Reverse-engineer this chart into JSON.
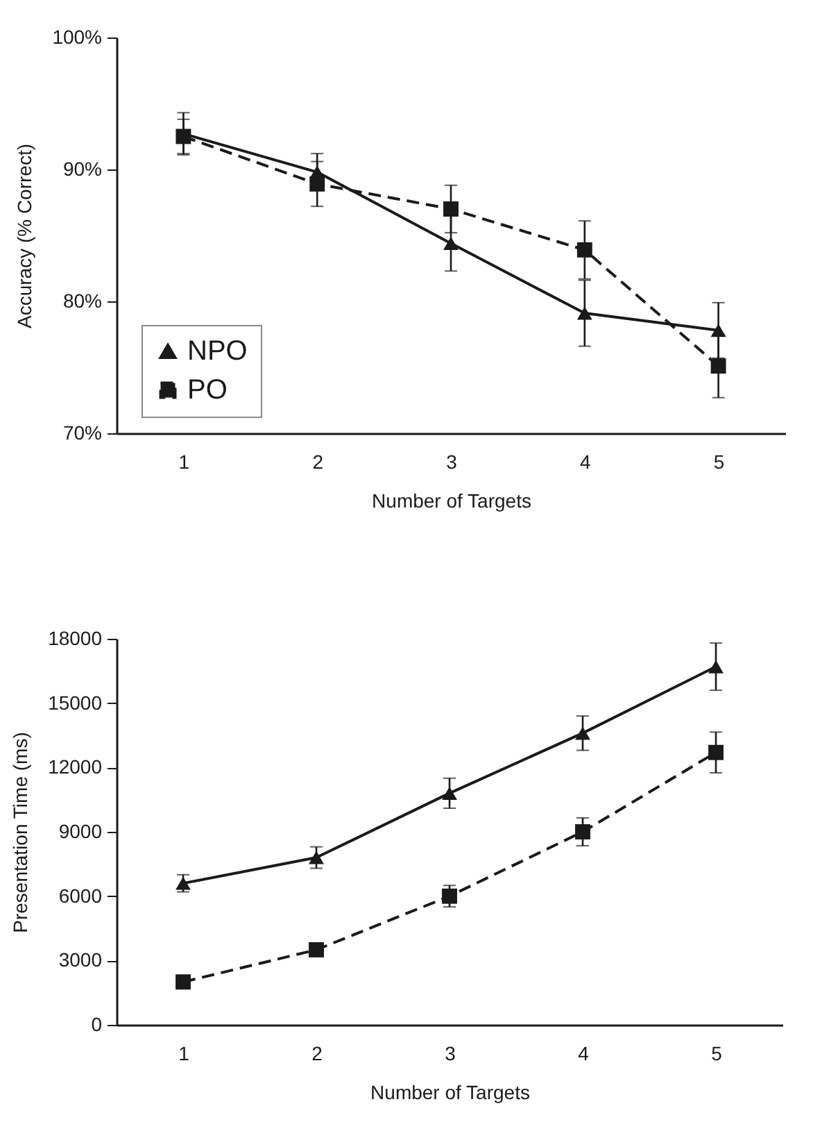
{
  "chart_data": [
    {
      "type": "line",
      "xlabel": "Number of Targets",
      "ylabel": "Accuracy (% Correct)",
      "categories": [
        "1",
        "2",
        "3",
        "4",
        "5"
      ],
      "ylim": [
        70,
        100
      ],
      "yticks": [
        {
          "value": 70,
          "label": "70%"
        },
        {
          "value": 80,
          "label": "80%"
        },
        {
          "value": 90,
          "label": "90%"
        },
        {
          "value": 100,
          "label": "100%"
        }
      ],
      "grid": false,
      "legend": "bottom left",
      "series": [
        {
          "name": "NPO",
          "color": "#1a1a1a",
          "marker": "triangle",
          "line_style": "solid",
          "values": [
            92.7,
            89.8,
            84.4,
            79.1,
            77.8
          ],
          "errors": [
            1.6,
            1.4,
            2.1,
            2.5,
            2.1
          ]
        },
        {
          "name": "PO",
          "color": "#1a1a1a",
          "marker": "square",
          "line_style": "dashed",
          "values": [
            92.5,
            88.9,
            87.0,
            83.9,
            75.1
          ],
          "errors": [
            1.3,
            1.7,
            1.8,
            2.2,
            2.4
          ]
        }
      ]
    },
    {
      "type": "line",
      "xlabel": "Number of Targets",
      "ylabel": "Presentation Time (ms)",
      "categories": [
        "1",
        "2",
        "3",
        "4",
        "5"
      ],
      "ylim": [
        0,
        18000
      ],
      "yticks": [
        0,
        3000,
        6000,
        9000,
        12000,
        15000,
        18000
      ],
      "grid": false,
      "legend": "bottom right",
      "series": [
        {
          "name": "NPO",
          "color": "#1a1a1a",
          "marker": "triangle",
          "line_style": "solid",
          "values": [
            6600,
            7800,
            10800,
            13600,
            16700
          ],
          "errors": [
            400,
            500,
            700,
            800,
            1100
          ]
        },
        {
          "name": "PO",
          "color": "#1a1a1a",
          "marker": "square",
          "line_style": "dashed",
          "values": [
            2000,
            3500,
            6000,
            9000,
            12700
          ],
          "errors": [
            null,
            null,
            500,
            650,
            950
          ]
        }
      ]
    }
  ]
}
